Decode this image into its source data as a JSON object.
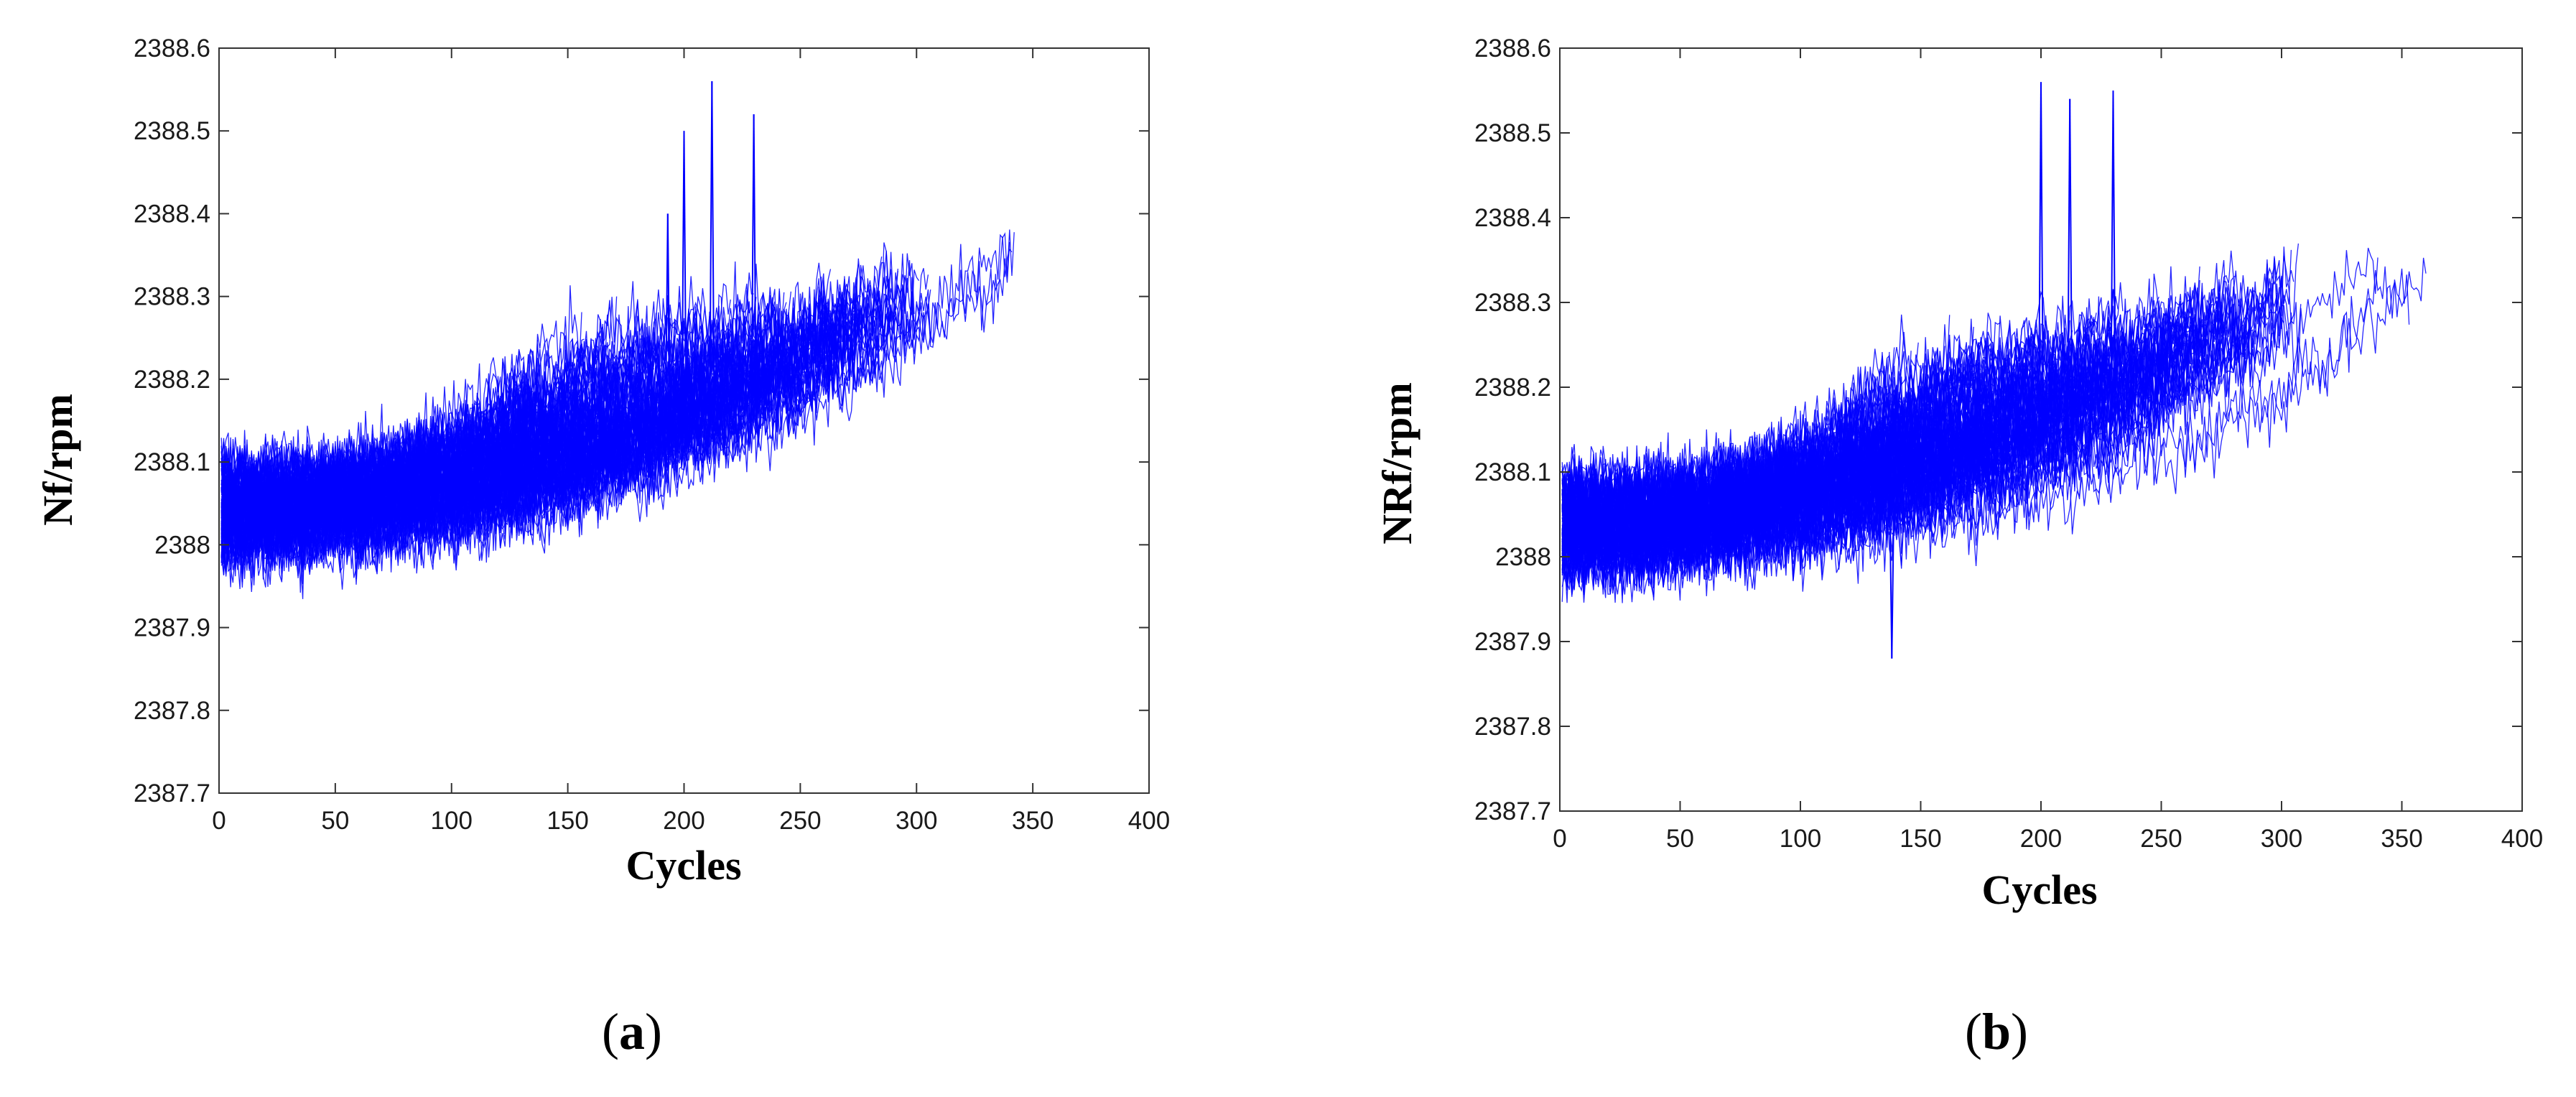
{
  "panels": [
    {
      "label": "a"
    },
    {
      "label": "b"
    }
  ],
  "chart_data": [
    {
      "type": "line",
      "xlabel": "Cycles",
      "ylabel": "Nf/rpm",
      "xlim": [
        0,
        400
      ],
      "ylim": [
        2387.7,
        2388.6
      ],
      "x_ticks": [
        "0",
        "50",
        "100",
        "150",
        "200",
        "250",
        "300",
        "350",
        "400"
      ],
      "y_ticks": [
        "2387.7",
        "2387.8",
        "2387.9",
        "2388",
        "2388.1",
        "2388.2",
        "2388.3",
        "2388.4",
        "2388.5",
        "2388.6"
      ],
      "grid": false,
      "series_color": "#0000ff",
      "trend": {
        "x": [
          0,
          50,
          100,
          150,
          200,
          250,
          300,
          362
        ],
        "y": [
          2388.06,
          2388.07,
          2388.08,
          2388.1,
          2388.13,
          2388.16,
          2388.19,
          2388.25
        ]
      },
      "spikes": [
        {
          "x": 193,
          "y": 2388.4
        },
        {
          "x": 200,
          "y": 2388.5
        },
        {
          "x": 212,
          "y": 2388.56
        },
        {
          "x": 230,
          "y": 2388.52
        }
      ]
    },
    {
      "type": "line",
      "xlabel": "Cycles",
      "ylabel": "NRf/rpm",
      "xlim": [
        0,
        400
      ],
      "ylim": [
        2387.7,
        2388.6
      ],
      "x_ticks": [
        "0",
        "50",
        "100",
        "150",
        "200",
        "250",
        "300",
        "350",
        "400"
      ],
      "y_ticks": [
        "2387.7",
        "2387.8",
        "2387.9",
        "2388",
        "2388.1",
        "2388.2",
        "2388.3",
        "2388.4",
        "2388.5",
        "2388.6"
      ],
      "grid": false,
      "series_color": "#0000ff",
      "trend": {
        "x": [
          0,
          50,
          100,
          150,
          200,
          250,
          300,
          362
        ],
        "y": [
          2388.05,
          2388.06,
          2388.08,
          2388.1,
          2388.13,
          2388.16,
          2388.19,
          2388.26
        ]
      },
      "spikes": [
        {
          "x": 200,
          "y": 2388.56
        },
        {
          "x": 212,
          "y": 2388.54
        },
        {
          "x": 230,
          "y": 2388.55
        },
        {
          "x": 138,
          "y": 2387.88
        }
      ]
    }
  ]
}
